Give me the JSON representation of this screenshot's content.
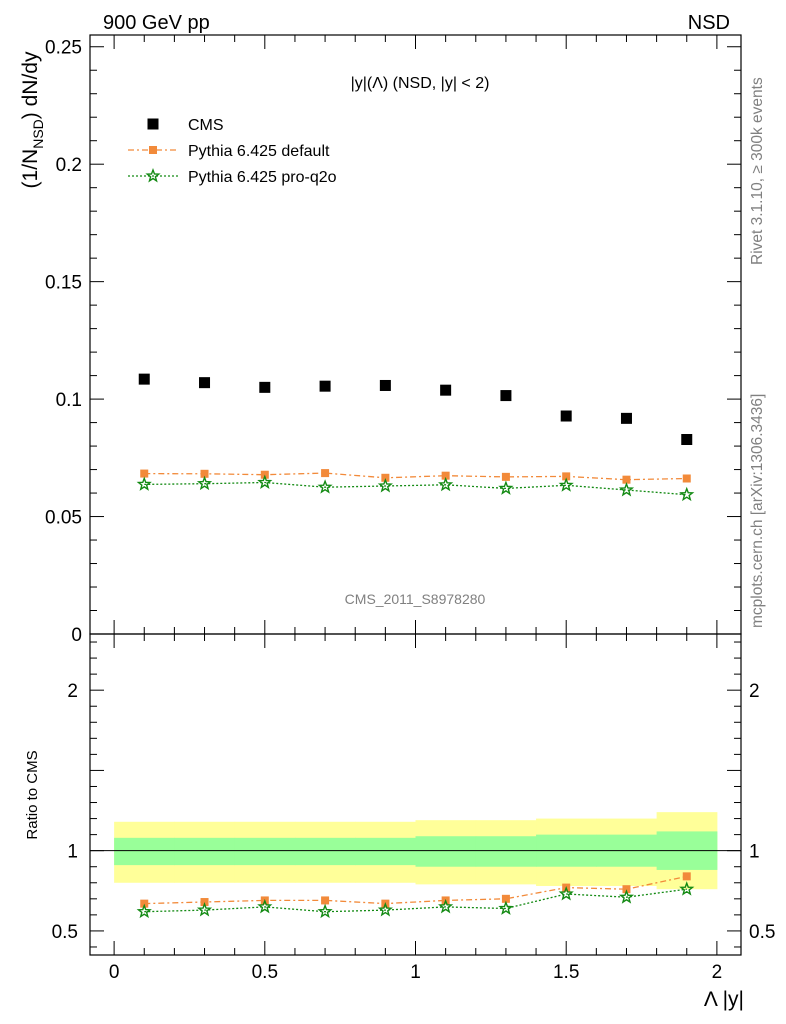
{
  "header": {
    "left": "900 GeV pp",
    "right": "NSD"
  },
  "side_labels": {
    "rivet": "Rivet 3.1.10, ≥ 300k events",
    "mcplots": "mcplots.cern.ch [arXiv:1306.3436]"
  },
  "watermark": "CMS_2011_S8978280",
  "colors": {
    "cms": "#000000",
    "default": "#f28a3a",
    "proq2o": "#138a13",
    "band_outer": "#ffff99",
    "band_inner": "#99ff99"
  },
  "chart_data": [
    {
      "type": "scatter",
      "title": "|y|(Λ) (NSD, |y| < 2)",
      "ylabel": "(1/N_NSD) dN/dy",
      "xlim": [
        -0.08,
        2.08
      ],
      "ylim": [
        0,
        0.255
      ],
      "yticks": [
        0,
        0.05,
        0.1,
        0.15,
        0.2,
        0.25
      ],
      "ytick_labels": [
        "0",
        "0.05",
        "0.1",
        "0.15",
        "0.2",
        "0.25"
      ],
      "legend": "top-left",
      "x": [
        0.1,
        0.3,
        0.5,
        0.7,
        0.9,
        1.1,
        1.3,
        1.5,
        1.7,
        1.9
      ],
      "series": [
        {
          "name": "CMS",
          "marker": "square",
          "values": [
            0.1085,
            0.107,
            0.105,
            0.1055,
            0.1058,
            0.1038,
            0.1015,
            0.0928,
            0.0918,
            0.0828
          ]
        },
        {
          "name": "Pythia 6.425 default",
          "marker": "square-line",
          "values": [
            0.0683,
            0.0682,
            0.0678,
            0.0685,
            0.0665,
            0.0674,
            0.0669,
            0.0671,
            0.0657,
            0.0662
          ]
        },
        {
          "name": "Pythia 6.425 pro-q2o",
          "marker": "star-line",
          "values": [
            0.0637,
            0.064,
            0.0645,
            0.0625,
            0.063,
            0.0635,
            0.062,
            0.0633,
            0.0613,
            0.0593
          ]
        }
      ]
    },
    {
      "type": "scatter",
      "ylabel": "Ratio to CMS",
      "xlabel": "Λ |y|",
      "xlim": [
        -0.08,
        2.08
      ],
      "ylim": [
        0.35,
        2.35
      ],
      "yticks": [
        0.5,
        1,
        2
      ],
      "ytick_labels": [
        "0.5",
        "1",
        "2"
      ],
      "xticks": [
        0,
        0.5,
        1,
        1.5,
        2
      ],
      "xtick_labels": [
        "0",
        "0.5",
        "1",
        "1.5",
        "2"
      ],
      "x": [
        0.1,
        0.3,
        0.5,
        0.7,
        0.9,
        1.1,
        1.3,
        1.5,
        1.7,
        1.9
      ],
      "bin_edges": [
        0,
        0.2,
        0.4,
        0.6,
        0.8,
        1.0,
        1.2,
        1.4,
        1.6,
        1.8,
        2.0
      ],
      "band_inner": [
        [
          0.91,
          1.08
        ],
        [
          0.91,
          1.08
        ],
        [
          0.91,
          1.08
        ],
        [
          0.91,
          1.08
        ],
        [
          0.91,
          1.08
        ],
        [
          0.9,
          1.09
        ],
        [
          0.9,
          1.09
        ],
        [
          0.9,
          1.1
        ],
        [
          0.9,
          1.1
        ],
        [
          0.88,
          1.12
        ]
      ],
      "band_outer": [
        [
          0.8,
          1.18
        ],
        [
          0.8,
          1.18
        ],
        [
          0.8,
          1.18
        ],
        [
          0.8,
          1.18
        ],
        [
          0.8,
          1.18
        ],
        [
          0.79,
          1.19
        ],
        [
          0.79,
          1.19
        ],
        [
          0.78,
          1.2
        ],
        [
          0.78,
          1.2
        ],
        [
          0.76,
          1.24
        ]
      ],
      "series": [
        {
          "name": "Pythia 6.425 default",
          "marker": "square-line",
          "values": [
            0.67,
            0.68,
            0.69,
            0.69,
            0.67,
            0.69,
            0.7,
            0.77,
            0.76,
            0.84
          ]
        },
        {
          "name": "Pythia 6.425 pro-q2o",
          "marker": "star-line",
          "values": [
            0.62,
            0.63,
            0.65,
            0.62,
            0.63,
            0.65,
            0.64,
            0.73,
            0.71,
            0.76
          ]
        }
      ]
    }
  ]
}
